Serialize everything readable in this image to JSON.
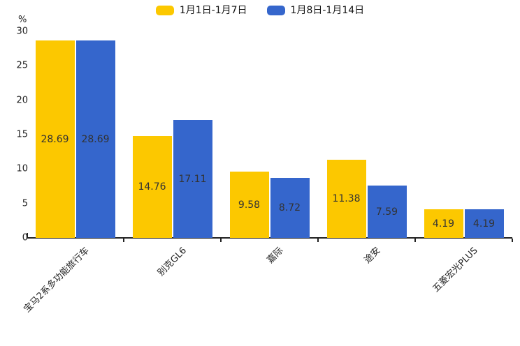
{
  "chart_data": {
    "type": "bar",
    "title": "",
    "xlabel": "",
    "ylabel": "%",
    "ylim": [
      0,
      30
    ],
    "yticks": [
      0,
      5,
      10,
      15,
      20,
      25,
      30
    ],
    "grid": false,
    "legend_position": "top-center",
    "categories": [
      "宝马2系多功能旅行车",
      "别克GL6",
      "嘉际",
      "途安",
      "五菱宏光PLUS"
    ],
    "series": [
      {
        "name": "1月1日-1月7日",
        "color": "#FCC800",
        "values": [
          28.69,
          14.76,
          9.58,
          11.38,
          4.19
        ]
      },
      {
        "name": "1月8日-1月14日",
        "color": "#3566CC",
        "values": [
          28.69,
          17.11,
          8.72,
          7.59,
          4.19
        ]
      }
    ],
    "value_labels_shown": true
  },
  "colors": {
    "background": "#ffffff",
    "axis": "#222222",
    "value_label_text": "#333333",
    "tick_label_text": "#222222",
    "legend_text": "#111111"
  }
}
